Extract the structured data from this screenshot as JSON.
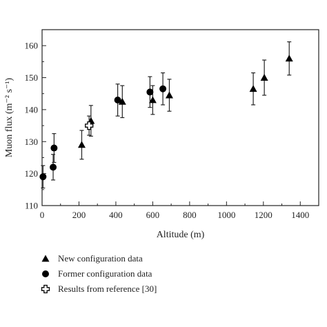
{
  "chart_data": {
    "type": "scatter",
    "xlabel": "Altitude (m)",
    "ylabel": "Muon flux (m⁻² s⁻¹)",
    "xlim": [
      0,
      1500
    ],
    "ylim": [
      110,
      165
    ],
    "x_ticks": [
      "0",
      "200",
      "400",
      "600",
      "800",
      "1000",
      "1200",
      "1400"
    ],
    "y_ticks": [
      "110",
      "120",
      "130",
      "140",
      "150",
      "160"
    ],
    "grid": false,
    "legend_position": "bottom-left, below plot",
    "series": [
      {
        "name": "New configuration data",
        "marker": "triangle",
        "points": [
          {
            "x": 215,
            "y": 129.0,
            "err": 4.5
          },
          {
            "x": 265,
            "y": 136.5,
            "err": 4.8
          },
          {
            "x": 435,
            "y": 142.5,
            "err": 5.0
          },
          {
            "x": 600,
            "y": 143.0,
            "err": 4.5
          },
          {
            "x": 690,
            "y": 144.5,
            "err": 5.0
          },
          {
            "x": 1145,
            "y": 146.5,
            "err": 5.0
          },
          {
            "x": 1205,
            "y": 150.0,
            "err": 5.5
          },
          {
            "x": 1340,
            "y": 156.0,
            "err": 5.2
          }
        ]
      },
      {
        "name": "Former configuration data",
        "marker": "circle",
        "points": [
          {
            "x": 5,
            "y": 119.0,
            "err": 3.5
          },
          {
            "x": 60,
            "y": 122.0,
            "err": 4.0
          },
          {
            "x": 65,
            "y": 128.0,
            "err": 4.5
          },
          {
            "x": 410,
            "y": 143.0,
            "err": 5.0
          },
          {
            "x": 585,
            "y": 145.5,
            "err": 4.8
          },
          {
            "x": 655,
            "y": 146.5,
            "err": 5.0
          }
        ]
      },
      {
        "name": "Results from reference [30]",
        "marker": "cross",
        "points": [
          {
            "x": 255,
            "y": 135.0,
            "err": 3.0
          }
        ]
      }
    ]
  }
}
